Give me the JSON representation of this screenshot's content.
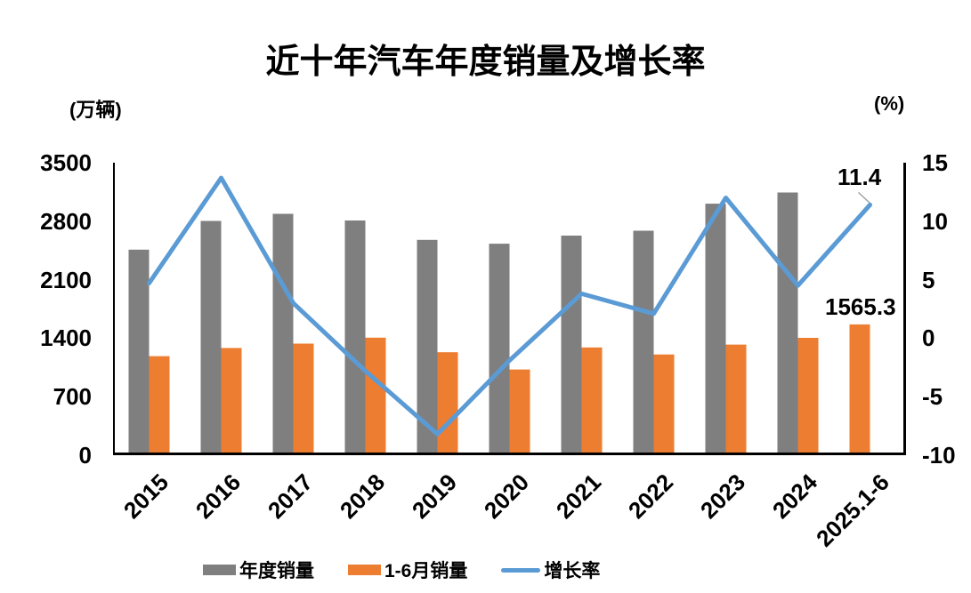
{
  "title": "近十年汽车年度销量及增长率",
  "left_axis_unit": "(万辆)",
  "right_axis_unit": "(%)",
  "annotations": {
    "growth_last": "11.4",
    "h1_last": "1565.3"
  },
  "colors": {
    "annual": "#7F7F7F",
    "h1": "#ED7D31",
    "growth": "#5B9BD5",
    "leader": "#A6A6A6",
    "axis": "#000000"
  },
  "legend": [
    {
      "key": "annual",
      "label": "年度销量",
      "swatch": "bar"
    },
    {
      "key": "h1",
      "label": "1-6月销量",
      "swatch": "bar"
    },
    {
      "key": "growth",
      "label": "增长率",
      "swatch": "line"
    }
  ],
  "chart_data": {
    "type": "bar+line",
    "title": "近十年汽车年度销量及增长率",
    "grid": false,
    "legend_position": "bottom",
    "categories": [
      "2015",
      "2016",
      "2017",
      "2018",
      "2019",
      "2020",
      "2021",
      "2022",
      "2023",
      "2024",
      "2025.1-6"
    ],
    "series": [
      {
        "key": "annual",
        "name": "年度销量",
        "type": "bar",
        "axis": "left",
        "values": [
          2459.8,
          2802.8,
          2887.9,
          2808.1,
          2576.9,
          2531.1,
          2627.5,
          2686.4,
          3009.4,
          3143.6,
          null
        ]
      },
      {
        "key": "h1",
        "name": "1-6月销量",
        "type": "bar",
        "axis": "left",
        "values": [
          1185.0,
          1283.0,
          1335.4,
          1406.6,
          1232.3,
          1025.7,
          1289.1,
          1205.7,
          1323.9,
          1404.7,
          1565.3
        ]
      },
      {
        "key": "growth",
        "name": "增长率",
        "type": "line",
        "axis": "right",
        "values": [
          4.7,
          13.7,
          3.0,
          -2.8,
          -8.2,
          -1.9,
          3.8,
          2.1,
          12.0,
          4.5,
          11.4
        ]
      }
    ],
    "left_axis": {
      "unit": "(万辆)",
      "range": [
        0,
        3500
      ],
      "ticks": [
        0,
        700,
        1400,
        2100,
        2800,
        3500
      ]
    },
    "right_axis": {
      "unit": "(%)",
      "range": [
        -10,
        15
      ],
      "ticks": [
        -10,
        -5,
        0,
        5,
        10,
        15
      ]
    },
    "data_labels": {
      "growth_last": "11.4",
      "h1_last": "1565.3"
    }
  }
}
